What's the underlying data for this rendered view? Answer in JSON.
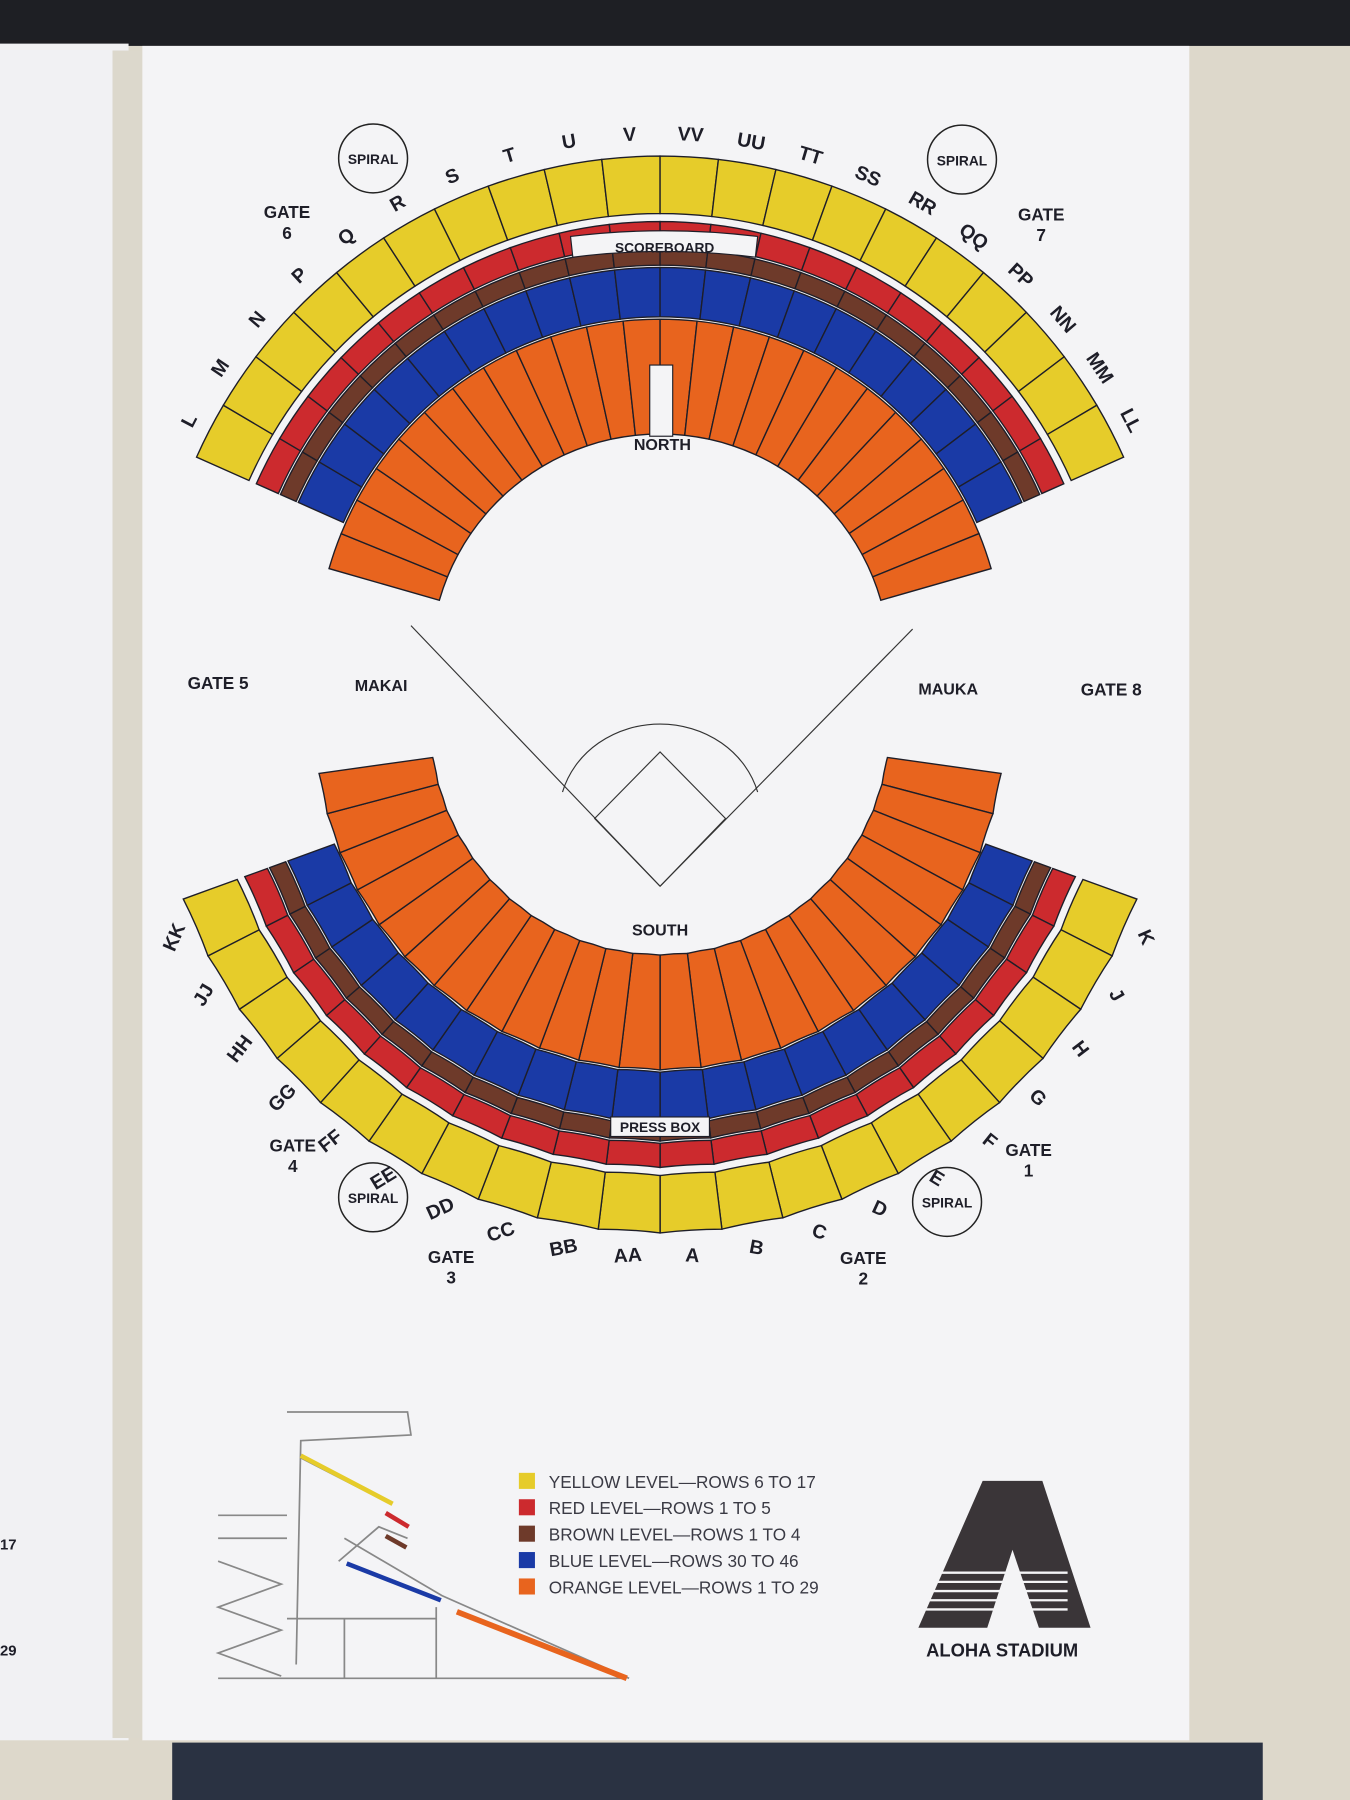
{
  "left_page": {
    "fragments": [
      "17",
      "29"
    ]
  },
  "colors": {
    "yellow": "#e6cc2a",
    "red": "#cc2a2e",
    "brown": "#6e3a2a",
    "blue": "#1a3aa6",
    "orange": "#e8641e",
    "ink": "#1e1e28",
    "paper": "#f4f4f6"
  },
  "north": {
    "title": "NORTH",
    "scoreboard": "SCOREBOARD",
    "sections": [
      "L",
      "M",
      "N",
      "P",
      "Q",
      "R",
      "S",
      "T",
      "U",
      "V",
      "VV",
      "UU",
      "TT",
      "SS",
      "RR",
      "QQ",
      "PP",
      "NN",
      "MM",
      "LL"
    ]
  },
  "south": {
    "title": "SOUTH",
    "press_box": "PRESS BOX",
    "sections": [
      "K",
      "J",
      "H",
      "G",
      "F",
      "E",
      "D",
      "C",
      "B",
      "A",
      "AA",
      "BB",
      "CC",
      "DD",
      "EE",
      "FF",
      "GG",
      "HH",
      "JJ",
      "KK"
    ]
  },
  "sides": {
    "left": "MAKAI",
    "right": "MAUKA"
  },
  "gates": {
    "g1": [
      "GATE",
      "1"
    ],
    "g2": [
      "GATE",
      "2"
    ],
    "g3": [
      "GATE",
      "3"
    ],
    "g4": [
      "GATE",
      "4"
    ],
    "g5": "GATE 5",
    "g6": [
      "GATE",
      "6"
    ],
    "g7": [
      "GATE",
      "7"
    ],
    "g8": "GATE 8"
  },
  "spiral": "SPIRAL",
  "legend": [
    {
      "color": "#e6cc2a",
      "label": "YELLOW LEVEL—ROWS 6 TO 17"
    },
    {
      "color": "#cc2a2e",
      "label": "RED LEVEL—ROWS 1 TO 5"
    },
    {
      "color": "#6e3a2a",
      "label": "BROWN LEVEL—ROWS 1 TO 4"
    },
    {
      "color": "#1a3aa6",
      "label": "BLUE LEVEL—ROWS 30 TO 46"
    },
    {
      "color": "#e8641e",
      "label": "ORANGE LEVEL—ROWS 1 TO 29"
    }
  ],
  "logo": {
    "text": "ALOHA STADIUM"
  }
}
